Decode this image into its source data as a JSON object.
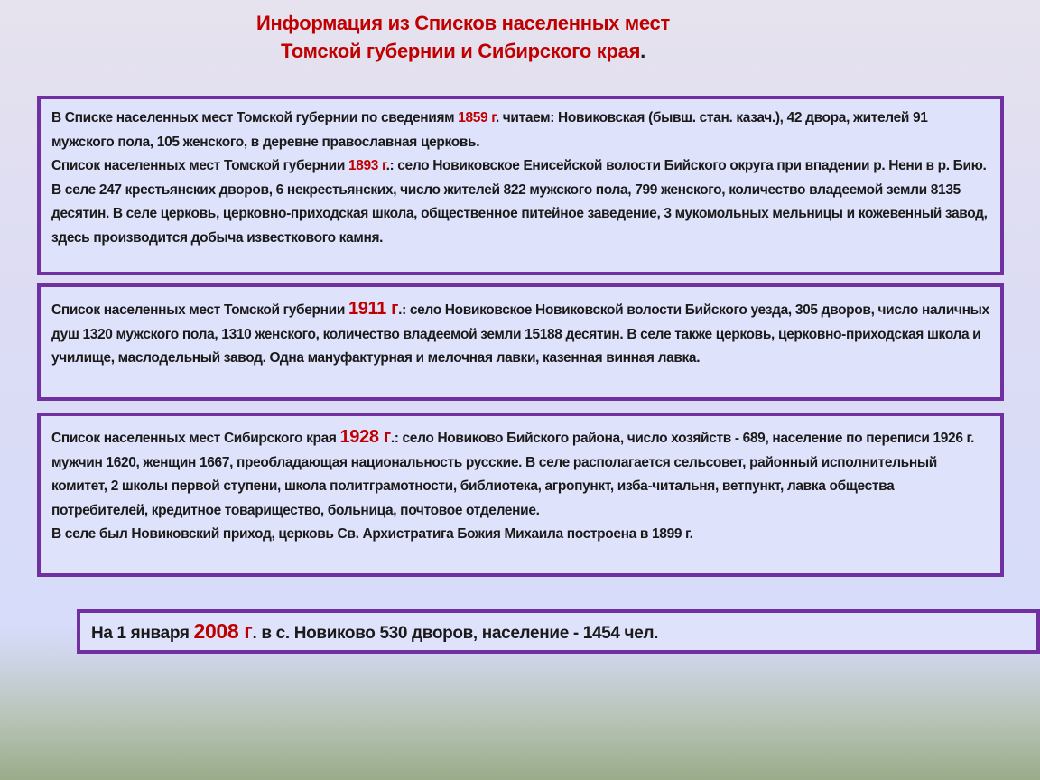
{
  "title": {
    "line1": "Информация из Списков населенных мест",
    "line2": "Томской губернии и Сибирского края",
    "dot": "."
  },
  "box1": {
    "p1_before": "В Списке населенных мест Томской губернии по сведениям ",
    "p1_year": "1859 г",
    "p1_after": ". читаем: Новиковская (бывш. стан. казач.), 42 двора, жителей 91 мужского пола, 105 женского, в деревне православная церковь.",
    "p2_before": "Список населенных мест Томской губернии ",
    "p2_year": "1893 г",
    "p2_after": ".: село Новиковское  Енисейской волости  Бийского округа при впадении р. Нени  в р. Бию. В селе 247 крестьянских дворов, 6 некрестьянских, число жителей 822 мужского пола, 799 женского, количество владеемой земли 8135 десятин. В селе церковь, церковно-приходская школа, общественное питейное заведение, 3 мукомольных мельницы и кожевенный завод, здесь производится добыча известкового камня."
  },
  "box2": {
    "before": "Список населенных мест Томской губернии ",
    "year": "1911 г",
    "after": ".: село Новиковское Новиковской волости Бийского уезда,  305 дворов, число наличных душ  1320 мужского пола,  1310 женского, количество  владеемой земли  15188 десятин.  В селе также церковь, церковно-приходская школа и училище, маслодельный завод.  Одна мануфактурная и мелочная лавки, казенная винная лавка."
  },
  "box3": {
    "before": "Список населенных мест Сибирского края ",
    "year": "1928 г",
    "after": ".: село Новиково Бийского района, число хозяйств - 689, население по переписи 1926 г. мужчин 1620, женщин 1667, преобладающая национальность русские. В селе располагается сельсовет, районный исполнительный комитет, 2 школы первой ступени, школа политграмотности, библиотека, агропункт, изба-читальня, ветпункт, лавка общества потребителей, кредитное товарищество, больница, почтовое отделение.",
    "p2": "В селе был Новиковский приход, церковь Св. Архистратига Божия Михаила построена в 1899 г."
  },
  "box4": {
    "before": "На 1 января ",
    "year": "2008 г",
    "after": ". в с. Новиково  530 дворов, население - 1454 чел."
  },
  "colors": {
    "accent": "#c00000",
    "border": "#7030a0",
    "box_bg": "#dfe2fb"
  }
}
